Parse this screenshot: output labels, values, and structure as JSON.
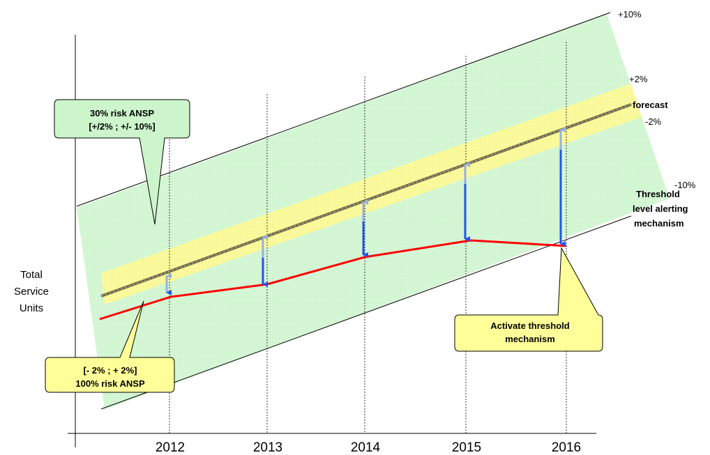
{
  "band_labels": {
    "plus_10": "+10%",
    "plus_2": "+2%",
    "forecast": "forecast",
    "minus_2": "-2%",
    "minus_10": "-10%"
  },
  "threshold_label": [
    "Threshold",
    "level alerting",
    "mechanism"
  ],
  "callouts": {
    "risk_30": [
      "30%  risk ANSP",
      "[+/2%  ; +/- 10%]"
    ],
    "risk_100": [
      "[- 2% ; + 2%]",
      "100% risk ANSP"
    ],
    "activate": [
      "Activate threshold",
      "mechanism"
    ]
  },
  "y_axis_label": [
    "Total",
    "Service",
    "Units"
  ],
  "x_axis": {
    "years": [
      "2012",
      "2013",
      "2014",
      "2015",
      "2016"
    ]
  },
  "series": {
    "forecast_color": "#8b8060",
    "actual_color": "#ff0000",
    "outer_band_color": "#ccf5cc",
    "inner_band_color": "#ffff99",
    "arrow_up_color": "#8fa8d8",
    "arrow_down_color": "#2255ee"
  }
}
